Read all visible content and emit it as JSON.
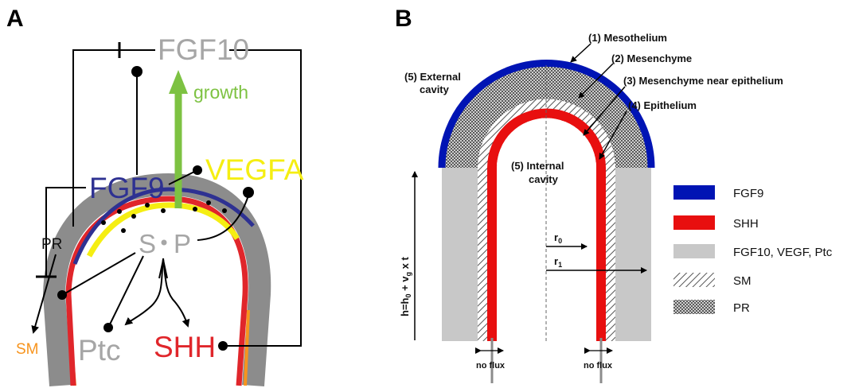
{
  "panels": {
    "a": "A",
    "b": "B"
  },
  "panel_a": {
    "fgf10": "FGF10",
    "growth": "growth",
    "fgf9": "FGF9",
    "vegfa": "VEGFA",
    "s": "S",
    "p": "P",
    "pr": "PR",
    "sm": "SM",
    "ptc": "Ptc",
    "shh": "SHH"
  },
  "panel_b": {
    "mesothelium": "(1) Mesothelium",
    "mesenchyme": "(2) Mesenchyme",
    "mesenchyme_near": "(3) Mesenchyme near epithelium",
    "epithelium": "(4) Epithelium",
    "external_1": "(5) External",
    "external_2": "cavity",
    "internal_1": "(5) Internal",
    "internal_2": "cavity",
    "r0": "r",
    "r0_sub": "0",
    "r1": "r",
    "r1_sub": "1",
    "no_flux_left": "no flux",
    "no_flux_right": "no flux",
    "height_h": "h=h",
    "height_h_sub": "0",
    "height_plus": " + v",
    "height_g_sub": "g",
    "height_xt": " x t"
  },
  "legend": [
    {
      "label": "FGF9",
      "color": "#0014b4"
    },
    {
      "label": "SHH",
      "color": "#e80f0f"
    },
    {
      "label": "FGF10, VEGF, Ptc",
      "color": "#c8c8c8"
    },
    {
      "label": "SM",
      "color": "hatch"
    },
    {
      "label": "PR",
      "color": "checker"
    }
  ],
  "colors": {
    "fgf9": "#2e3192",
    "vegfa": "#f5ee12",
    "growth": "#7dc242",
    "shh": "#e0262b",
    "sm": "#f7941d",
    "grey_text": "#a6a6a6",
    "gray_layer": "#8c8c8c"
  }
}
